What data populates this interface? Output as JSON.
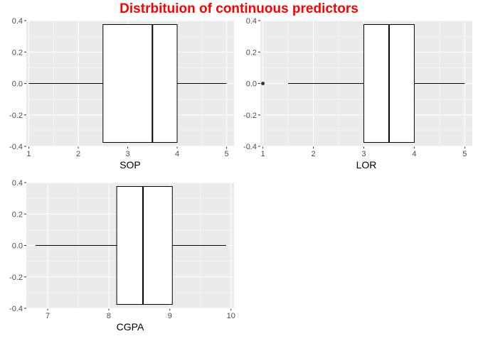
{
  "title": "Distrbituion of continuous predictors",
  "colors": {
    "title": "#ff0000",
    "panel": "#ebebeb",
    "grid": "#ffffff",
    "box_fill": "#ffffff",
    "box_line": "#000000"
  },
  "chart_data": [
    {
      "type": "boxplot",
      "xlabel": "SOP",
      "xlim": [
        0.95,
        5.15
      ],
      "xticks": [
        1,
        2,
        3,
        4,
        5
      ],
      "ylim": [
        -0.4,
        0.4
      ],
      "yticks": [
        -0.4,
        -0.2,
        0.0,
        0.2,
        0.4
      ],
      "stats": {
        "min": 1,
        "q1": 2.5,
        "median": 3.5,
        "q3": 4,
        "max": 5
      },
      "outliers": [],
      "grid": true
    },
    {
      "type": "boxplot",
      "xlabel": "LOR",
      "xlim": [
        0.95,
        5.15
      ],
      "xticks": [
        1,
        2,
        3,
        4,
        5
      ],
      "ylim": [
        -0.4,
        0.4
      ],
      "yticks": [
        -0.4,
        -0.2,
        0.0,
        0.2,
        0.4
      ],
      "stats": {
        "min": 1.5,
        "q1": 3,
        "median": 3.5,
        "q3": 4,
        "max": 5
      },
      "outliers": [
        1
      ],
      "grid": true
    },
    {
      "type": "boxplot",
      "xlabel": "CGPA",
      "xlim": [
        6.65,
        10.05
      ],
      "xticks": [
        7,
        8,
        9,
        10
      ],
      "ylim": [
        -0.4,
        0.4
      ],
      "yticks": [
        -0.4,
        -0.2,
        0.0,
        0.2,
        0.4
      ],
      "stats": {
        "min": 6.8,
        "q1": 8.13,
        "median": 8.56,
        "q3": 9.04,
        "max": 9.92
      },
      "outliers": [],
      "grid": true
    }
  ]
}
